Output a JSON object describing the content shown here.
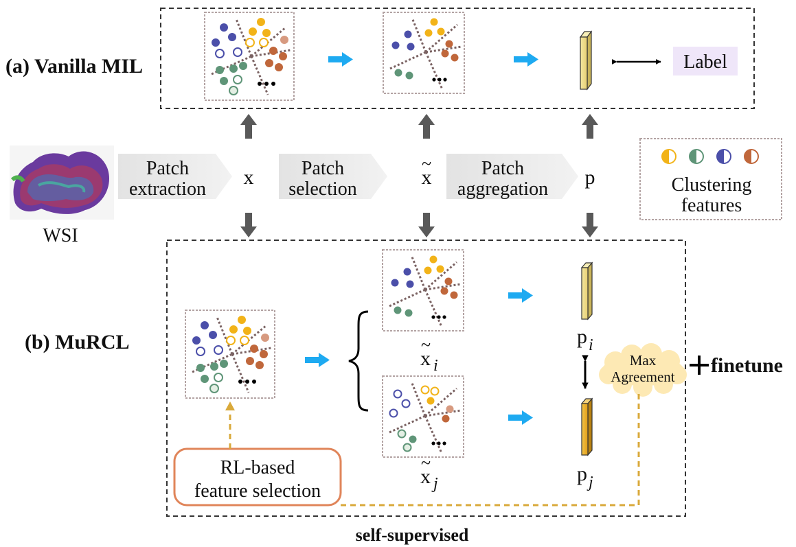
{
  "section_a": {
    "title": "(a) Vanilla MIL",
    "label_box": "Label"
  },
  "section_b": {
    "title": "(b) MuRCL",
    "finetune": "finetune",
    "bottom_caption": "self-supervised"
  },
  "wsi": {
    "caption": "WSI"
  },
  "pipeline": {
    "patch_extraction": [
      "Patch",
      "extraction"
    ],
    "patch_selection": [
      "Patch",
      "selection"
    ],
    "patch_aggregation": [
      "Patch",
      "aggregation"
    ],
    "x": "x",
    "x_tilde": "x",
    "p": "p"
  },
  "clustering": {
    "line1": "Clustering",
    "line2": "features"
  },
  "murcl": {
    "x_i_base": "x",
    "x_i_sub": "i",
    "x_j_base": "x",
    "x_j_sub": "j",
    "p_i_base": "p",
    "p_i_sub": "i",
    "p_j_base": "p",
    "p_j_sub": "j",
    "max_agreement": [
      "Max",
      "Agreement"
    ],
    "rl_box": [
      "RL-based",
      "feature selection"
    ]
  },
  "colors": {
    "yellow": "#f2b318",
    "green": "#5f9578",
    "blue": "#4b4fa9",
    "orange": "#c0673b",
    "arrow_blue": "#1eaaf1",
    "gray_arrow": "#595959",
    "rl_border": "#e0855a",
    "label_bg": "#efe6f9",
    "cloud": "#fde9b4",
    "dashed_gold": "#d9a93a"
  }
}
